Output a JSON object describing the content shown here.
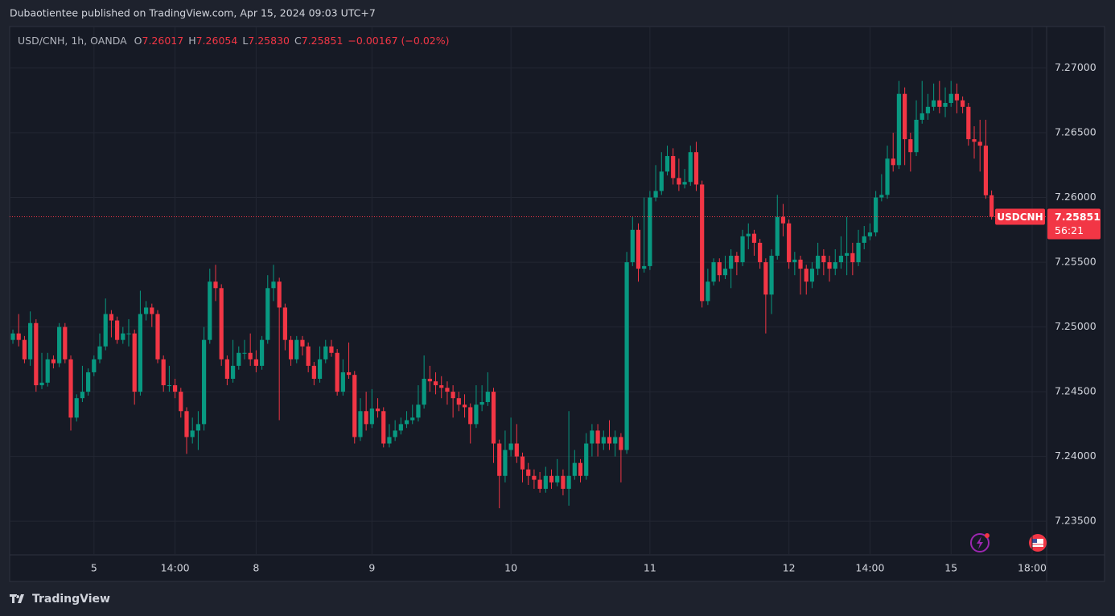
{
  "header": {
    "publisher": "Dubaotientee published on TradingView.com, Apr 15, 2024 09:03 UTC+7"
  },
  "footer": {
    "brand": "TradingView"
  },
  "chart_data": {
    "type": "candlestick",
    "legend": {
      "symbol": "USD/CNH, 1h, OANDA",
      "items": [
        {
          "key": "O",
          "value": "7.26017"
        },
        {
          "key": "H",
          "value": "7.26054"
        },
        {
          "key": "L",
          "value": "7.25830"
        },
        {
          "key": "C",
          "value": "7.25851"
        }
      ],
      "change": "−0.00167 (−0.02%)"
    },
    "last_price": {
      "symbol_tag": "USDCNH",
      "label": "7.25851",
      "countdown": "56:21"
    },
    "up_color": "#089981",
    "down_color": "#f23645",
    "grid": true,
    "xlim": [
      -0.56,
      178.5
    ],
    "xticks": [
      {
        "value": 14,
        "label": "5"
      },
      {
        "value": 28,
        "label": "14:00"
      },
      {
        "value": 42,
        "label": "8"
      },
      {
        "value": 62,
        "label": "9"
      },
      {
        "value": 86,
        "label": "10"
      },
      {
        "value": 110,
        "label": "11"
      },
      {
        "value": 134,
        "label": "12"
      },
      {
        "value": 148,
        "label": "14:00"
      },
      {
        "value": 162,
        "label": "15"
      },
      {
        "value": 176,
        "label": "18:00"
      }
    ],
    "ylim": [
      7.2324,
      7.2732
    ],
    "yticks": [
      {
        "value": 7.235,
        "label": "7.23500"
      },
      {
        "value": 7.24,
        "label": "7.24000"
      },
      {
        "value": 7.245,
        "label": "7.24500"
      },
      {
        "value": 7.25,
        "label": "7.25000"
      },
      {
        "value": 7.255,
        "label": "7.25500"
      },
      {
        "value": 7.26,
        "label": "7.26000"
      },
      {
        "value": 7.265,
        "label": "7.26500"
      },
      {
        "value": 7.27,
        "label": "7.27000"
      }
    ],
    "open": [
      7.249,
      7.2495,
      7.249,
      7.2475,
      7.2503,
      7.2455,
      7.2457,
      7.2475,
      7.2472,
      7.25,
      7.2475,
      7.243,
      7.2445,
      7.245,
      7.2465,
      7.2475,
      7.2485,
      7.251,
      7.2505,
      7.249,
      7.2495,
      7.2495,
      7.245,
      7.251,
      7.2515,
      7.251,
      7.2475,
      7.2455,
      7.2455,
      7.245,
      7.2435,
      7.2415,
      7.242,
      7.2425,
      7.249,
      7.2535,
      7.253,
      7.2475,
      7.246,
      7.247,
      7.248,
      7.248,
      7.2475,
      7.247,
      7.249,
      7.253,
      7.2535,
      7.2515,
      7.249,
      7.2475,
      7.249,
      7.2485,
      7.247,
      7.246,
      7.2475,
      7.2485,
      7.248,
      7.245,
      7.2465,
      7.2463,
      7.2415,
      7.2435,
      7.2425,
      7.2437,
      7.2435,
      7.241,
      7.2415,
      7.242,
      7.2425,
      7.2428,
      7.243,
      7.244,
      7.246,
      7.2458,
      7.2455,
      7.2453,
      7.245,
      7.2445,
      7.244,
      7.2438,
      7.2425,
      7.244,
      7.2442,
      7.245,
      7.241,
      7.2385,
      7.2405,
      7.241,
      7.24,
      7.239,
      7.2385,
      7.2382,
      7.2375,
      7.2385,
      7.238,
      7.2385,
      7.2375,
      7.2385,
      7.2395,
      7.2385,
      7.241,
      7.242,
      7.241,
      7.2415,
      7.241,
      7.2415,
      7.2405,
      7.255,
      7.2575,
      7.2545,
      7.2547,
      7.26,
      7.2605,
      7.262,
      7.2632,
      7.2615,
      7.261,
      7.2612,
      7.2635,
      7.261,
      7.252,
      7.2535,
      7.255,
      7.254,
      7.2545,
      7.2555,
      7.255,
      7.257,
      7.2572,
      7.2565,
      7.255,
      7.2525,
      7.2555,
      7.2585,
      7.258,
      7.255,
      7.2552,
      7.2545,
      7.2535,
      7.2545,
      7.2555,
      7.255,
      7.2545,
      7.255,
      7.2555,
      7.2557,
      7.255,
      7.2565,
      7.257,
      7.2573,
      7.26,
      7.2602,
      7.263,
      7.2625,
      7.268,
      7.2645,
      7.2635,
      7.266,
      7.2665,
      7.267,
      7.2675,
      7.267,
      7.2673,
      7.268,
      7.2675,
      7.267,
      7.2645,
      7.2643,
      7.264,
      7.26017
    ],
    "high": [
      7.2498,
      7.251,
      7.2493,
      7.2512,
      7.2506,
      7.248,
      7.248,
      7.2478,
      7.2503,
      7.2503,
      7.2478,
      7.2448,
      7.247,
      7.2468,
      7.2478,
      7.2495,
      7.2522,
      7.2513,
      7.2508,
      7.25,
      7.2506,
      7.2498,
      7.2528,
      7.252,
      7.2518,
      7.2513,
      7.2478,
      7.247,
      7.246,
      7.2453,
      7.2438,
      7.243,
      7.2435,
      7.25,
      7.2545,
      7.2548,
      7.2533,
      7.2478,
      7.249,
      7.2485,
      7.249,
      7.2495,
      7.2482,
      7.2493,
      7.254,
      7.2548,
      7.2538,
      7.2518,
      7.2493,
      7.2493,
      7.2493,
      7.2488,
      7.2473,
      7.2485,
      7.249,
      7.249,
      7.2483,
      7.2475,
      7.2488,
      7.2466,
      7.2445,
      7.245,
      7.2452,
      7.2445,
      7.2438,
      7.2425,
      7.2428,
      7.243,
      7.2435,
      7.244,
      7.2455,
      7.2478,
      7.247,
      7.2465,
      7.2462,
      7.2458,
      7.2455,
      7.245,
      7.2448,
      7.2441,
      7.2455,
      7.2455,
      7.2465,
      7.2453,
      7.2413,
      7.242,
      7.243,
      7.2425,
      7.2403,
      7.2395,
      7.239,
      7.2388,
      7.2392,
      7.239,
      7.2398,
      7.239,
      7.2435,
      7.2405,
      7.2398,
      7.2418,
      7.2425,
      7.2425,
      7.242,
      7.2428,
      7.242,
      7.2418,
      7.2558,
      7.2585,
      7.258,
      7.26,
      7.2605,
      7.2625,
      7.2635,
      7.264,
      7.2638,
      7.263,
      7.2622,
      7.264,
      7.2643,
      7.2613,
      7.2545,
      7.2553,
      7.2553,
      7.2555,
      7.256,
      7.2558,
      7.2575,
      7.258,
      7.2575,
      7.2568,
      7.2553,
      7.256,
      7.2602,
      7.2595,
      7.2583,
      7.2558,
      7.2555,
      7.2548,
      7.255,
      7.2565,
      7.256,
      7.2555,
      7.256,
      7.257,
      7.2585,
      7.2565,
      7.2575,
      7.2578,
      7.258,
      7.2605,
      7.2618,
      7.264,
      7.265,
      7.269,
      7.2685,
      7.265,
      7.2675,
      7.269,
      7.268,
      7.2688,
      7.269,
      7.2685,
      7.269,
      7.2688,
      7.2678,
      7.2673,
      7.2655,
      7.266,
      7.266,
      7.26054
    ],
    "low": [
      7.2487,
      7.2485,
      7.2472,
      7.247,
      7.245,
      7.2452,
      7.2454,
      7.2468,
      7.2469,
      7.2472,
      7.242,
      7.2427,
      7.2442,
      7.2447,
      7.2462,
      7.2472,
      7.2482,
      7.2492,
      7.2487,
      7.2487,
      7.2485,
      7.244,
      7.2447,
      7.2505,
      7.25,
      7.2472,
      7.245,
      7.245,
      7.2445,
      7.243,
      7.2402,
      7.241,
      7.2405,
      7.242,
      7.2487,
      7.252,
      7.247,
      7.2455,
      7.2457,
      7.2467,
      7.2475,
      7.247,
      7.2465,
      7.2467,
      7.2487,
      7.252,
      7.2428,
      7.2482,
      7.247,
      7.2472,
      7.2478,
      7.2465,
      7.2455,
      7.2457,
      7.2472,
      7.2477,
      7.2447,
      7.2447,
      7.246,
      7.241,
      7.2412,
      7.242,
      7.2422,
      7.243,
      7.2407,
      7.2407,
      7.2412,
      7.2417,
      7.2422,
      7.2425,
      7.2427,
      7.2437,
      7.245,
      7.2448,
      7.2445,
      7.244,
      7.243,
      7.2435,
      7.243,
      7.241,
      7.2422,
      7.2435,
      7.2439,
      7.2395,
      7.236,
      7.238,
      7.24,
      7.2395,
      7.238,
      7.2378,
      7.2375,
      7.2372,
      7.2372,
      7.2375,
      7.2377,
      7.237,
      7.2362,
      7.2382,
      7.238,
      7.2382,
      7.24,
      7.24,
      7.2405,
      7.2405,
      7.24,
      7.238,
      7.2402,
      7.2547,
      7.2535,
      7.2542,
      7.2544,
      7.2597,
      7.2602,
      7.2617,
      7.261,
      7.2605,
      7.2607,
      7.2609,
      7.2605,
      7.2515,
      7.2517,
      7.2532,
      7.2535,
      7.2537,
      7.253,
      7.254,
      7.2547,
      7.256,
      7.2555,
      7.2545,
      7.2495,
      7.251,
      7.2552,
      7.257,
      7.2545,
      7.254,
      7.2525,
      7.2525,
      7.253,
      7.254,
      7.254,
      7.2535,
      7.254,
      7.2545,
      7.254,
      7.254,
      7.2547,
      7.256,
      7.2567,
      7.257,
      7.2597,
      7.2599,
      7.262,
      7.2622,
      7.2625,
      7.262,
      7.2632,
      7.2657,
      7.266,
      7.2667,
      7.2665,
      7.2662,
      7.267,
      7.2665,
      7.2665,
      7.264,
      7.263,
      7.262,
      7.2599,
      7.2583
    ],
    "close": [
      7.2495,
      7.249,
      7.2475,
      7.2503,
      7.2455,
      7.2457,
      7.2475,
      7.2472,
      7.25,
      7.2475,
      7.243,
      7.2445,
      7.245,
      7.2465,
      7.2475,
      7.2485,
      7.251,
      7.2505,
      7.249,
      7.2495,
      7.2495,
      7.245,
      7.251,
      7.2515,
      7.251,
      7.2475,
      7.2455,
      7.2455,
      7.245,
      7.2435,
      7.2415,
      7.242,
      7.2425,
      7.249,
      7.2535,
      7.253,
      7.2475,
      7.246,
      7.247,
      7.248,
      7.248,
      7.2475,
      7.247,
      7.249,
      7.253,
      7.2535,
      7.2515,
      7.249,
      7.2475,
      7.249,
      7.2485,
      7.247,
      7.246,
      7.2475,
      7.2485,
      7.248,
      7.245,
      7.2465,
      7.2463,
      7.2415,
      7.2435,
      7.2425,
      7.2437,
      7.2435,
      7.241,
      7.2415,
      7.242,
      7.2425,
      7.2428,
      7.243,
      7.244,
      7.246,
      7.2458,
      7.2455,
      7.2453,
      7.245,
      7.2445,
      7.244,
      7.2438,
      7.2425,
      7.244,
      7.2442,
      7.245,
      7.241,
      7.2385,
      7.2405,
      7.241,
      7.24,
      7.239,
      7.2385,
      7.2382,
      7.2375,
      7.2385,
      7.238,
      7.2385,
      7.2375,
      7.2385,
      7.2395,
      7.2385,
      7.241,
      7.242,
      7.241,
      7.2415,
      7.241,
      7.2415,
      7.2405,
      7.255,
      7.2575,
      7.2545,
      7.2547,
      7.26,
      7.2605,
      7.262,
      7.2632,
      7.2615,
      7.261,
      7.2612,
      7.2635,
      7.261,
      7.252,
      7.2535,
      7.255,
      7.254,
      7.2545,
      7.2555,
      7.255,
      7.257,
      7.2572,
      7.2565,
      7.255,
      7.2525,
      7.2555,
      7.2585,
      7.258,
      7.255,
      7.2552,
      7.2545,
      7.2535,
      7.2545,
      7.2555,
      7.255,
      7.2545,
      7.255,
      7.2555,
      7.2557,
      7.255,
      7.2565,
      7.257,
      7.2573,
      7.26,
      7.2602,
      7.263,
      7.2625,
      7.268,
      7.2645,
      7.2635,
      7.266,
      7.2665,
      7.267,
      7.2675,
      7.267,
      7.2673,
      7.268,
      7.2675,
      7.267,
      7.2645,
      7.2643,
      7.264,
      7.26017,
      7.25851
    ]
  }
}
